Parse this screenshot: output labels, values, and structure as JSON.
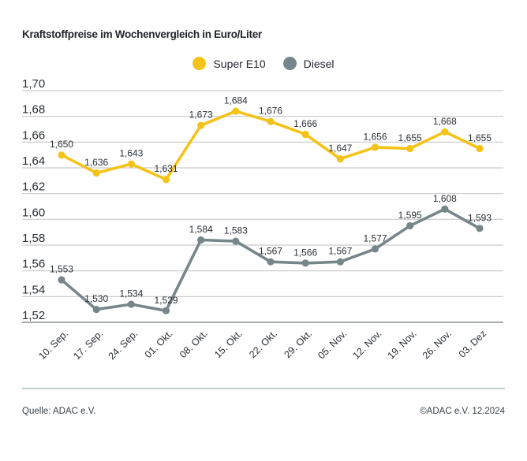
{
  "header": {
    "title": "Kraftstoffpreise im Wochenvergleich in Euro/Liter"
  },
  "chart_data": {
    "type": "line",
    "title": "Kraftstoffpreise im Wochenvergleich in Euro/Liter",
    "unit": "Euro/Liter",
    "categories": [
      "10. Sep.",
      "17. Sep.",
      "24. Sep.",
      "01. Okt.",
      "08. Okt.",
      "15. Okt.",
      "22. Okt.",
      "29. Okt.",
      "05. Nov.",
      "12. Nov.",
      "19. Nov.",
      "26. Nov.",
      "03. Dez"
    ],
    "series": [
      {
        "name": "Super E10",
        "color": "#f4c319",
        "values": [
          1.65,
          1.636,
          1.643,
          1.631,
          1.673,
          1.684,
          1.676,
          1.666,
          1.647,
          1.656,
          1.655,
          1.668,
          1.655
        ]
      },
      {
        "name": "Diesel",
        "color": "#76868a",
        "values": [
          1.553,
          1.53,
          1.534,
          1.529,
          1.584,
          1.583,
          1.567,
          1.566,
          1.567,
          1.577,
          1.595,
          1.608,
          1.593
        ]
      }
    ],
    "ylim": [
      1.52,
      1.7
    ],
    "ytick_step": 0.02,
    "ytick_labels": [
      "1,70",
      "1,68",
      "1,66",
      "1,64",
      "1,62",
      "1,60",
      "1,58",
      "1,56",
      "1,54",
      "1,52"
    ],
    "grid": true,
    "legend_position": "top-center",
    "decimal_separator": ",",
    "value_label_decimals": 3
  },
  "colors": {
    "grid_line": "#cacaca",
    "axis_line": "#9aa0a3",
    "separator": "#c3d0d0",
    "text_dark": "#23262e"
  },
  "footer": {
    "source": "Quelle: ADAC e.V.",
    "copyright": "©ADAC e.V. 12.2024"
  }
}
